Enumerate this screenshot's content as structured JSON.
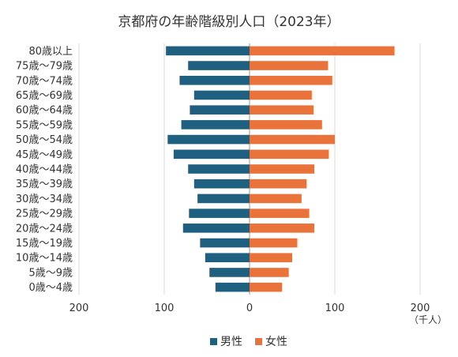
{
  "chart_data": {
    "type": "bar",
    "orientation": "horizontal",
    "layout": "population-pyramid",
    "title": "京都府の年齢階級別人口（2023年）",
    "unit": "（千人）",
    "categories": [
      "0歳～4歳",
      "5歳～9歳",
      "10歳～14歳",
      "15歳～19歳",
      "20歳～24歳",
      "25歳～29歳",
      "30歳～34歳",
      "35歳～39歳",
      "40歳～44歳",
      "45歳～49歳",
      "50歳～54歳",
      "55歳～59歳",
      "60歳～64歳",
      "65歳～69歳",
      "70歳～74歳",
      "75歳～79歳",
      "80歳以上"
    ],
    "series": [
      {
        "name": "男性",
        "color": "#1f5f7f",
        "side": "left",
        "values": [
          40,
          47,
          52,
          58,
          78,
          71,
          61,
          65,
          72,
          89,
          96,
          80,
          70,
          65,
          82,
          72,
          98
        ]
      },
      {
        "name": "女性",
        "color": "#e9733b",
        "side": "right",
        "values": [
          38,
          46,
          50,
          56,
          76,
          70,
          61,
          67,
          76,
          93,
          100,
          85,
          75,
          73,
          97,
          92,
          170
        ]
      }
    ],
    "xlim": [
      -200,
      200
    ],
    "x_tick_labels": [
      "200",
      "100",
      "0",
      "100",
      "200"
    ],
    "grid": "vertical",
    "legend_position": "bottom"
  }
}
